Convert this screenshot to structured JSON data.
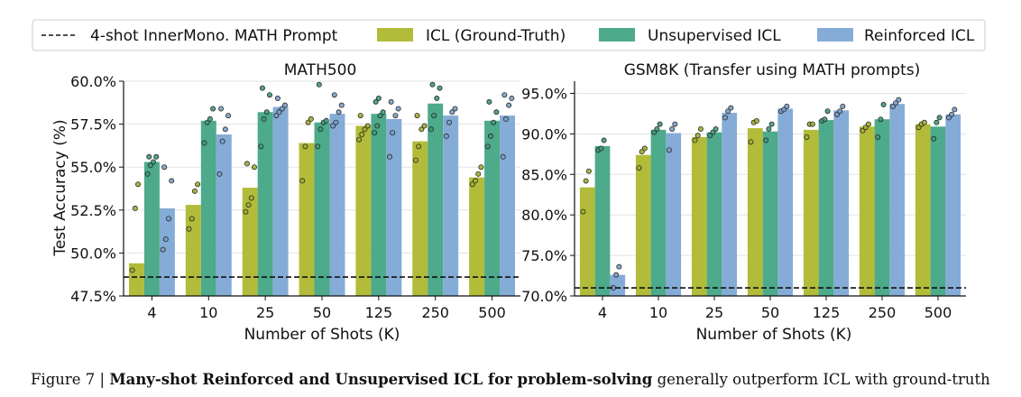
{
  "legend": {
    "baseline_label": "4-shot InnerMono. MATH Prompt",
    "series_labels": [
      "ICL (Ground-Truth)",
      "Unsupervised ICL",
      "Reinforced ICL"
    ]
  },
  "colors": {
    "icl": "#b2bc3a",
    "unsupervised": "#4daa8a",
    "reinforced": "#85acd6",
    "baseline": "#111111"
  },
  "caption": {
    "label": "Figure 7 | ",
    "bold": "Many-shot Reinforced and Unsupervised ICL for problem-solving",
    "rest": " generally outperform ICL with ground-truth"
  },
  "chart_data": [
    {
      "type": "bar",
      "title": "MATH500",
      "xlabel": "Number of Shots (K)",
      "ylabel": "Test Accuracy (%)",
      "categories": [
        "4",
        "10",
        "25",
        "50",
        "125",
        "250",
        "500"
      ],
      "ylim": [
        47.5,
        60.0
      ],
      "yticks": [
        47.5,
        50.0,
        52.5,
        55.0,
        57.5,
        60.0
      ],
      "ytick_labels": [
        "47.5%",
        "50.0%",
        "52.5%",
        "55.0%",
        "57.5%",
        "60.0%"
      ],
      "baseline": 48.6,
      "grid": true,
      "series": [
        {
          "name": "ICL (Ground-Truth)",
          "values": [
            49.4,
            52.8,
            53.8,
            56.4,
            57.4,
            56.5,
            54.4
          ],
          "points": [
            [
              49.0,
              52.6,
              54.0
            ],
            [
              51.4,
              52.0,
              53.6,
              54.0
            ],
            [
              52.4,
              52.8,
              53.2,
              55.0,
              55.2
            ],
            [
              54.2,
              56.2,
              57.6,
              57.8
            ],
            [
              56.6,
              56.9,
              57.2,
              57.4,
              58.0
            ],
            [
              55.4,
              56.2,
              57.2,
              57.4,
              58.0
            ],
            [
              54.0,
              54.2,
              54.6,
              55.0
            ]
          ]
        },
        {
          "name": "Unsupervised ICL",
          "values": [
            55.3,
            57.7,
            58.2,
            57.6,
            58.1,
            58.7,
            57.7
          ],
          "points": [
            [
              54.6,
              55.1,
              55.3,
              55.6,
              55.6
            ],
            [
              56.4,
              57.6,
              57.8,
              58.4
            ],
            [
              56.2,
              57.8,
              58.2,
              59.2,
              59.6
            ],
            [
              56.2,
              57.2,
              57.6,
              57.7,
              59.8
            ],
            [
              57.0,
              57.4,
              58.0,
              58.2,
              58.8,
              59.0
            ],
            [
              57.2,
              58.0,
              59.0,
              59.6,
              59.8
            ],
            [
              56.2,
              56.8,
              57.6,
              58.2,
              58.8
            ]
          ]
        },
        {
          "name": "Reinforced ICL",
          "values": [
            52.6,
            56.9,
            58.5,
            58.1,
            57.8,
            58.0,
            58.0
          ],
          "points": [
            [
              50.2,
              50.8,
              52.0,
              54.2,
              55.0
            ],
            [
              54.6,
              56.5,
              57.2,
              58.0,
              58.4
            ],
            [
              58.0,
              58.2,
              58.4,
              58.6,
              59.0
            ],
            [
              57.4,
              57.6,
              58.2,
              58.6,
              59.2
            ],
            [
              55.6,
              57.0,
              58.0,
              58.4,
              58.8
            ],
            [
              56.8,
              57.6,
              58.2,
              58.4
            ],
            [
              55.6,
              57.8,
              58.6,
              59.0,
              59.2
            ]
          ]
        }
      ]
    },
    {
      "type": "bar",
      "title": "GSM8K (Transfer using MATH prompts)",
      "xlabel": "Number of Shots (K)",
      "ylabel": "",
      "categories": [
        "4",
        "10",
        "25",
        "50",
        "125",
        "250",
        "500"
      ],
      "ylim": [
        70.0,
        96.5
      ],
      "yticks": [
        70.0,
        75.0,
        80.0,
        85.0,
        90.0,
        95.0
      ],
      "ytick_labels": [
        "70.0%",
        "75.0%",
        "80.0%",
        "85.0%",
        "90.0%",
        "95.0%"
      ],
      "baseline": 71.0,
      "grid": true,
      "series": [
        {
          "name": "ICL (Ground-Truth)",
          "values": [
            83.4,
            87.4,
            89.6,
            90.7,
            90.5,
            90.9,
            91.2
          ],
          "points": [
            [
              80.4,
              84.2,
              85.4
            ],
            [
              85.8,
              87.8,
              88.2
            ],
            [
              89.2,
              89.8,
              90.6
            ],
            [
              89.0,
              91.4,
              91.6
            ],
            [
              89.6,
              91.2,
              91.2
            ],
            [
              90.4,
              90.8,
              91.2
            ],
            [
              90.8,
              91.2,
              91.4
            ]
          ]
        },
        {
          "name": "Unsupervised ICL",
          "values": [
            88.5,
            90.5,
            90.2,
            90.3,
            91.7,
            91.8,
            90.9
          ],
          "points": [
            [
              88.0,
              88.2,
              89.2
            ],
            [
              90.2,
              90.6,
              91.2
            ],
            [
              89.8,
              90.2,
              90.6
            ],
            [
              89.2,
              90.6,
              91.2
            ],
            [
              91.6,
              91.8,
              92.8
            ],
            [
              89.6,
              91.8,
              93.6
            ],
            [
              89.4,
              91.4,
              92.0
            ]
          ]
        },
        {
          "name": "Reinforced ICL",
          "values": [
            72.6,
            90.1,
            92.6,
            93.1,
            92.9,
            93.7,
            92.4
          ],
          "points": [
            [
              71.0,
              72.6,
              73.6
            ],
            [
              88.0,
              90.6,
              91.2
            ],
            [
              92.0,
              92.8,
              93.2
            ],
            [
              92.8,
              93.0,
              93.4
            ],
            [
              92.4,
              92.8,
              93.4
            ],
            [
              93.4,
              93.8,
              94.2
            ],
            [
              92.0,
              92.4,
              93.0
            ]
          ]
        }
      ]
    }
  ]
}
